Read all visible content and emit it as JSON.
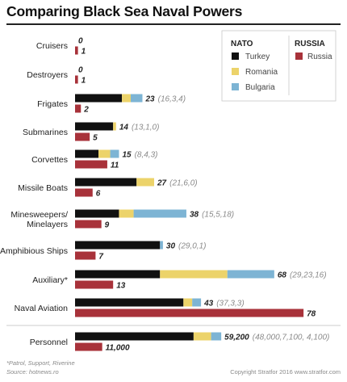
{
  "title": "Comparing Black Sea Naval Powers",
  "legend": {
    "nato_heading": "NATO",
    "russia_heading": "RUSSIA",
    "turkey": "Turkey",
    "romania": "Romania",
    "bulgaria": "Bulgaria",
    "russia": "Russia"
  },
  "colors": {
    "turkey": "#111111",
    "romania": "#ecd36a",
    "bulgaria": "#7db4d4",
    "russia": "#a8323a"
  },
  "footer": {
    "note": "*Patrol, Support, Riverine",
    "source": "Source: hotnews.ro",
    "copyright": "Copyright Stratfor 2016   www.stratfor.com"
  },
  "chart_data": {
    "type": "bar",
    "orientation": "horizontal",
    "categories": [
      "Cruisers",
      "Destroyers",
      "Frigates",
      "Submarines",
      "Corvettes",
      "Missile Boats",
      "Minesweepers/ Minelayers",
      "Amphibious Ships",
      "Auxiliary*",
      "Naval Aviation",
      "Personnel"
    ],
    "nato_series": [
      {
        "name": "Turkey",
        "values": [
          0,
          0,
          16,
          13,
          8,
          21,
          15,
          29,
          29,
          37,
          48000
        ]
      },
      {
        "name": "Romania",
        "values": [
          0,
          0,
          3,
          1,
          4,
          6,
          5,
          0,
          23,
          3,
          7100
        ]
      },
      {
        "name": "Bulgaria",
        "values": [
          0,
          0,
          4,
          0,
          3,
          0,
          18,
          1,
          16,
          3,
          4100
        ]
      }
    ],
    "nato_total_labels": [
      "0",
      "0",
      "23",
      "14",
      "15",
      "27",
      "38",
      "30",
      "68",
      "43",
      "59,200"
    ],
    "nato_breakdown_labels": [
      "",
      "",
      "(16,3,4)",
      "(13,1,0)",
      "(8,4,3)",
      "(21,6,0)",
      "(15,5,18)",
      "(29,0,1)",
      "(29,23,16)",
      "(37,3,3)",
      "(48,000,7,100, 4,100)"
    ],
    "russia_series": {
      "name": "Russia",
      "values": [
        1,
        1,
        2,
        5,
        11,
        6,
        9,
        7,
        13,
        78,
        11000
      ]
    },
    "russia_labels": [
      "1",
      "1",
      "2",
      "5",
      "11",
      "6",
      "9",
      "7",
      "13",
      "78",
      "11,000"
    ]
  }
}
